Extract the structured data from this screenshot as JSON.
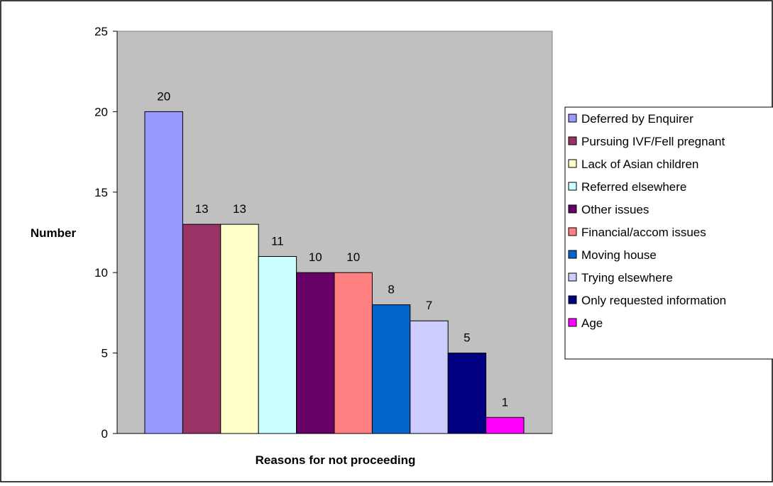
{
  "chart_data": {
    "type": "bar",
    "categories": [
      "Deferred by Enquirer",
      "Pursuing IVF/Fell pregnant",
      "Lack of Asian children",
      "Referred elsewhere",
      "Other issues",
      "Financial/accom issues",
      "Moving house",
      "Trying elsewhere",
      "Only requested information",
      "Age"
    ],
    "values": [
      20,
      13,
      13,
      11,
      10,
      10,
      8,
      7,
      5,
      1
    ],
    "colors": [
      "#9999ff",
      "#993366",
      "#ffffcc",
      "#ccffff",
      "#660066",
      "#ff8080",
      "#0066cc",
      "#ccccff",
      "#000080",
      "#ff00ff"
    ],
    "xlabel": "Reasons for not proceeding",
    "ylabel": "Number",
    "ylim": [
      0,
      25
    ],
    "yticks": [
      "0",
      "5",
      "10",
      "15",
      "20",
      "25"
    ],
    "data_labels": [
      "20",
      "13",
      "13",
      "11",
      "10",
      "10",
      "8",
      "7",
      "5",
      "1"
    ],
    "plot_background": "#c0c0c0",
    "grid": false,
    "legend_position": "right"
  }
}
